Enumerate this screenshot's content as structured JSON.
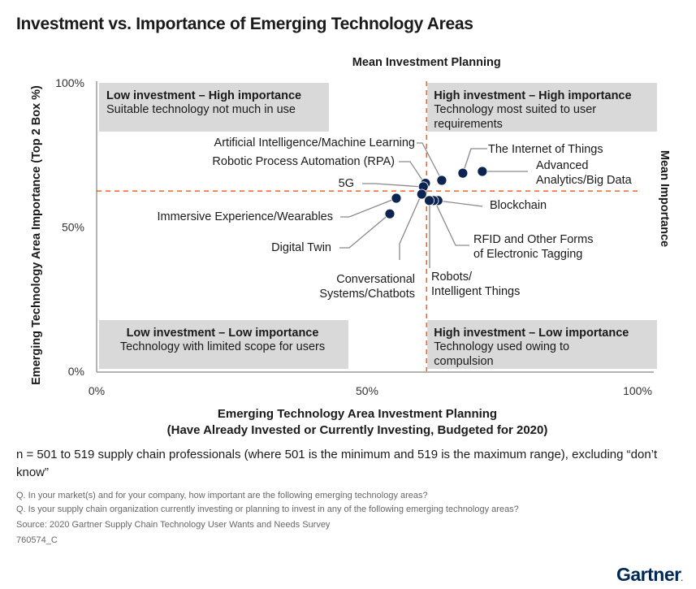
{
  "title": "Investment vs. Importance of Emerging Technology Areas",
  "chart_data": {
    "type": "scatter",
    "title": "Investment vs. Importance of Emerging Technology Areas",
    "xlabel": "Emerging Technology Area Investment Planning",
    "xlabel_sub": "(Have Already Invested or Currently Investing, Budgeted for 2020)",
    "ylabel": "Emerging Technology Area Importance (Top 2 Box %)",
    "xlim": [
      0,
      100
    ],
    "ylim": [
      0,
      100
    ],
    "x_ticks": [
      "0%",
      "50%",
      "100%"
    ],
    "y_ticks": [
      "0%",
      "50%",
      "100%"
    ],
    "grid": false,
    "mean_x": 61,
    "mean_y": 62.5,
    "mean_x_label": "Mean Investment Planning",
    "mean_y_label": "Mean Importance",
    "quadrants": [
      {
        "id": "tl",
        "heading": "Low investment – High importance",
        "lines": [
          "Suitable technology not much in use"
        ]
      },
      {
        "id": "tr",
        "heading": "High investment – High importance",
        "lines": [
          "Technology most suited to user",
          "requirements"
        ]
      },
      {
        "id": "bl",
        "heading": "Low investment – Low importance",
        "lines": [
          "Technology with limited scope for users"
        ]
      },
      {
        "id": "br",
        "heading": "High investment – Low importance",
        "lines": [
          "Technology used owing to",
          "compulsion"
        ]
      }
    ],
    "points": [
      {
        "label": [
          "Artificial Intelligence/Machine Learning"
        ],
        "x": 63.8,
        "y": 66.2
      },
      {
        "label": [
          "Robotic Process Automation (RPA)"
        ],
        "x": 60.8,
        "y": 65.2
      },
      {
        "label": [
          "5G"
        ],
        "x": 60.4,
        "y": 64.0
      },
      {
        "label": [
          "The Internet of Things"
        ],
        "x": 67.7,
        "y": 68.7
      },
      {
        "label": [
          "Advanced",
          "Analytics/Big Data"
        ],
        "x": 71.3,
        "y": 69.3
      },
      {
        "label": [
          "Immersive Experience/Wearables"
        ],
        "x": 55.4,
        "y": 60.0
      },
      {
        "label": [
          "Digital Twin"
        ],
        "x": 54.2,
        "y": 54.6
      },
      {
        "label": [
          "Conversational",
          "Systems/Chatbots"
        ],
        "x": 60.1,
        "y": 61.4
      },
      {
        "label": [
          "Blockchain"
        ],
        "x": 63.1,
        "y": 59.2
      },
      {
        "label": [
          "RFID and Other Forms",
          "of Electronic Tagging"
        ],
        "x": 62.3,
        "y": 59.2
      },
      {
        "label": [
          "Robots/",
          "Intelligent Things"
        ],
        "x": 61.5,
        "y": 59.2
      }
    ]
  },
  "notes": {
    "n_text": "n = 501 to 519 supply chain professionals (where 501 is the minimum and 519 is the maximum range), excluding “don’t know”",
    "q1": "Q. In your market(s) and for your company, how important are the following emerging technology areas?",
    "q2": "Q. Is your supply chain organization currently investing or planning to invest in any of the following emerging technology areas?",
    "source": "Source: 2020 Gartner Supply Chain Technology User Wants and Needs Survey",
    "id": "760574_C"
  },
  "brand": {
    "logo": "Gartner",
    "color": "#002856",
    "accent": "#f26522",
    "dot_color": "#0b2450"
  }
}
